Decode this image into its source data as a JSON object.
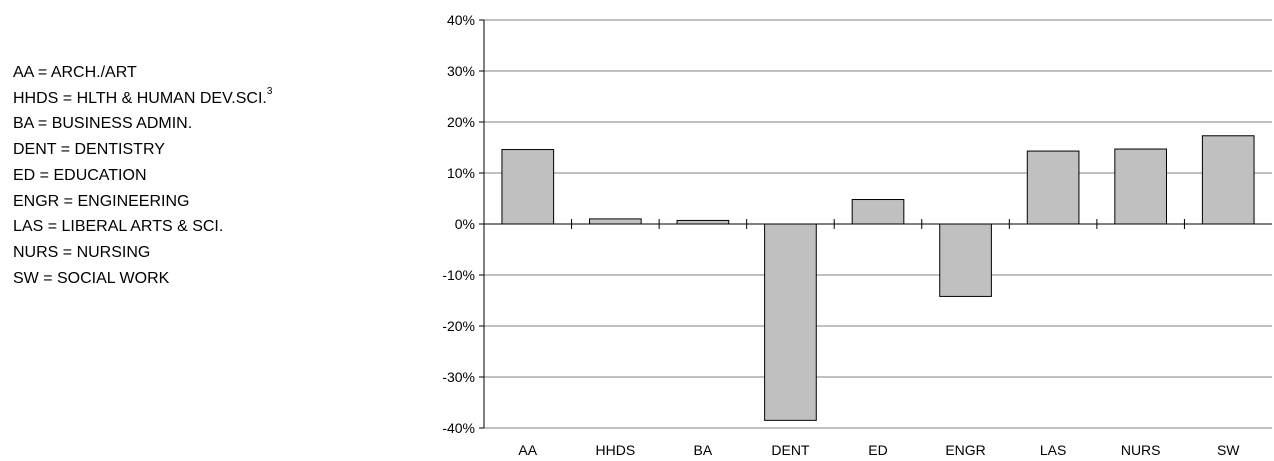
{
  "legend": {
    "items": [
      {
        "text": "AA = ARCH./ART",
        "sup": ""
      },
      {
        "text": "HHDS = HLTH & HUMAN DEV.SCI.",
        "sup": "3"
      },
      {
        "text": "BA  = BUSINESS ADMIN.",
        "sup": ""
      },
      {
        "text": "DENT = DENTISTRY",
        "sup": ""
      },
      {
        "text": "ED  = EDUCATION",
        "sup": ""
      },
      {
        "text": "ENGR = ENGINEERING",
        "sup": ""
      },
      {
        "text": "LAS = LIBERAL ARTS & SCI.",
        "sup": ""
      },
      {
        "text": "NURS = NURSING",
        "sup": ""
      },
      {
        "text": "SW  = SOCIAL WORK",
        "sup": ""
      }
    ]
  },
  "chart_data": {
    "type": "bar",
    "title": "",
    "xlabel": "",
    "ylabel": "",
    "categories": [
      "AA",
      "HHDS",
      "BA",
      "DENT",
      "ED",
      "ENGR",
      "LAS",
      "NURS",
      "SW"
    ],
    "values": [
      14.6,
      1.0,
      0.7,
      -38.5,
      4.8,
      -14.2,
      14.3,
      14.7,
      17.3
    ],
    "ylim": [
      -40,
      40
    ],
    "yticks": [
      40,
      30,
      20,
      10,
      0,
      -10,
      -20,
      -30,
      -40
    ],
    "ytick_labels": [
      "40%",
      "30%",
      "20%",
      "10%",
      "0%",
      "-10%",
      "-20%",
      "-30%",
      "-40%"
    ],
    "grid": true,
    "colors": {
      "bar_fill": "#c0c0c0",
      "bar_stroke": "#000000",
      "grid": "#808080",
      "axis": "#000000"
    }
  }
}
